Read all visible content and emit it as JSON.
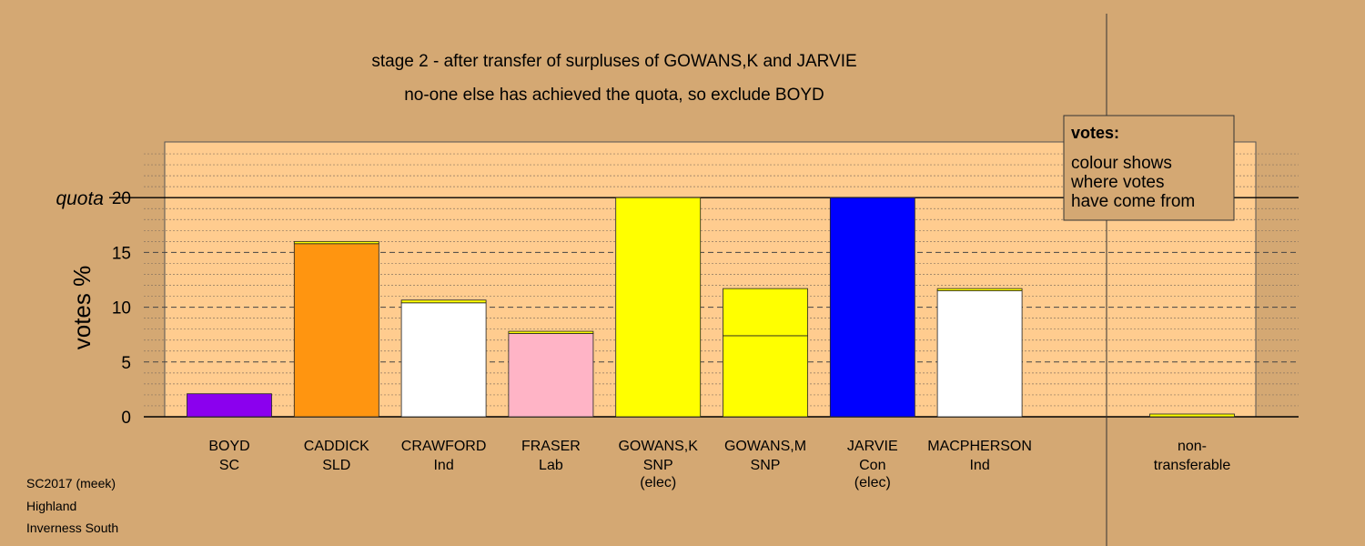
{
  "chart_data": {
    "type": "bar",
    "title": "stage 2 - after transfer of surpluses of GOWANS,K and JARVIE",
    "subtitle": "no-one else has achieved the quota, so exclude BOYD",
    "ylabel": "votes %",
    "ylim": [
      0,
      25
    ],
    "yticks": [
      0,
      5,
      10,
      15,
      20
    ],
    "quota": 20,
    "quota_label": "quota",
    "grid": "dashed horizontal",
    "candidates": [
      {
        "name": "BOYD",
        "party": "SC",
        "note": "",
        "segments": [
          {
            "value": 2.1,
            "color": "#8b00ee"
          }
        ]
      },
      {
        "name": "CADDICK",
        "party": "SLD",
        "note": "",
        "segments": [
          {
            "value": 15.8,
            "color": "#ff9510"
          },
          {
            "value": 0.2,
            "color": "#ffff00"
          }
        ]
      },
      {
        "name": "CRAWFORD",
        "party": "Ind",
        "note": "",
        "segments": [
          {
            "value": 10.4,
            "color": "#ffffff"
          },
          {
            "value": 0.25,
            "color": "#ffff00"
          }
        ]
      },
      {
        "name": "FRASER",
        "party": "Lab",
        "note": "",
        "segments": [
          {
            "value": 7.6,
            "color": "#ffb4c6"
          },
          {
            "value": 0.2,
            "color": "#ffff00"
          }
        ]
      },
      {
        "name": "GOWANS,K",
        "party": "SNP",
        "note": "(elec)",
        "segments": [
          {
            "value": 20.0,
            "color": "#ffff00"
          }
        ]
      },
      {
        "name": "GOWANS,M",
        "party": "SNP",
        "note": "",
        "segments": [
          {
            "value": 7.4,
            "color": "#ffff00"
          },
          {
            "value": 4.3,
            "color": "#ffff00"
          }
        ]
      },
      {
        "name": "JARVIE",
        "party": "Con",
        "note": "(elec)",
        "segments": [
          {
            "value": 20.0,
            "color": "#0000ff"
          }
        ]
      },
      {
        "name": "MACPHERSON",
        "party": "Ind",
        "note": "",
        "segments": [
          {
            "value": 11.5,
            "color": "#ffffff"
          },
          {
            "value": 0.2,
            "color": "#ffff00"
          }
        ]
      }
    ],
    "nontransferable": {
      "label1": "non-",
      "label2": "transferable",
      "value": 0.25,
      "color": "#ffff00"
    },
    "legend": {
      "heading": "votes:",
      "lines": [
        "colour shows",
        "where votes",
        "have come from"
      ],
      "position": "top-right"
    },
    "footer": [
      "SC2017 (meek)",
      "Highland",
      "Inverness South"
    ],
    "colors": {
      "background": "#d4a873",
      "plot_area": "#ffcc8f"
    }
  }
}
